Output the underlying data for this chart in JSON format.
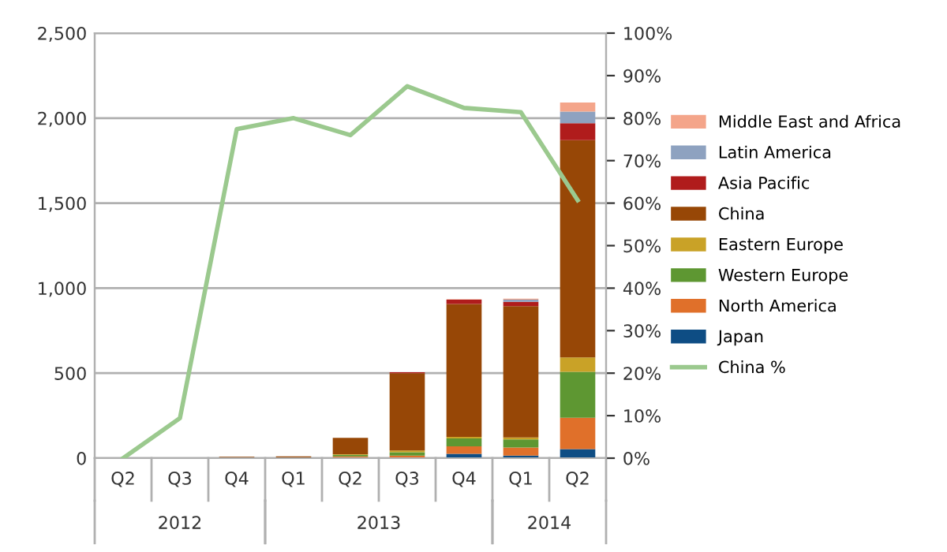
{
  "chart_data": {
    "type": "bar",
    "stacked": true,
    "categories": [
      "Q2",
      "Q3",
      "Q4",
      "Q1",
      "Q2",
      "Q3",
      "Q4",
      "Q1",
      "Q2"
    ],
    "series": [
      {
        "name": "Japan",
        "color": "#0e4d84",
        "values": [
          0,
          0,
          0,
          0,
          5,
          5,
          25,
          15,
          53
        ]
      },
      {
        "name": "North America",
        "color": "#e0702a",
        "values": [
          0,
          0,
          5,
          2,
          5,
          10,
          44,
          48,
          185
        ]
      },
      {
        "name": "Western Europe",
        "color": "#5e9732",
        "values": [
          0,
          0,
          0,
          0,
          10,
          20,
          47,
          47,
          270
        ]
      },
      {
        "name": "Eastern Europe",
        "color": "#c9a227",
        "values": [
          0,
          0,
          0,
          0,
          3,
          10,
          9,
          12,
          85
        ]
      },
      {
        "name": "China",
        "color": "#974706",
        "values": [
          0,
          0,
          3,
          8,
          97,
          455,
          782,
          772,
          1277
        ]
      },
      {
        "name": "Asia Pacific",
        "color": "#b01c1c",
        "values": [
          0,
          0,
          0,
          0,
          null,
          6,
          25,
          25,
          100
        ]
      },
      {
        "name": "Latin America",
        "color": "#8ea2c0",
        "values": [
          0,
          0,
          0,
          0,
          0,
          0,
          null,
          13,
          69
        ]
      },
      {
        "name": "Middle East and Africa",
        "color": "#f4a58a",
        "values": [
          0,
          0,
          0,
          0,
          0,
          0,
          3,
          6,
          53
        ]
      },
      {
        "name": "China %",
        "type": "line",
        "axis": "y2",
        "color": "#9bc98e",
        "values": [
          0,
          9.4,
          77.4,
          80,
          76,
          87.5,
          82.4,
          81.4,
          60.7
        ]
      }
    ],
    "annotations": [
      "2012",
      "2013",
      "2014"
    ],
    "ylim": [
      0,
      2500
    ],
    "yticks": [
      {
        "value": 0,
        "label": "0"
      },
      {
        "value": 500,
        "label": "500"
      },
      {
        "value": 1000,
        "label": "1,000"
      },
      {
        "value": 1500,
        "label": "1,500"
      },
      {
        "value": 2000,
        "label": "2,000"
      },
      {
        "value": 2500,
        "label": "2,500"
      }
    ],
    "y2lim": [
      0,
      100
    ],
    "y2ticks": [
      {
        "value": 0,
        "label": "0%"
      },
      {
        "value": 10,
        "label": "10%"
      },
      {
        "value": 20,
        "label": "20%"
      },
      {
        "value": 30,
        "label": "30%"
      },
      {
        "value": 40,
        "label": "40%"
      },
      {
        "value": 50,
        "label": "50%"
      },
      {
        "value": 60,
        "label": "60%"
      },
      {
        "value": 70,
        "label": "70%"
      },
      {
        "value": 80,
        "label": "80%"
      },
      {
        "value": 90,
        "label": "90%"
      },
      {
        "value": 100,
        "label": "100%"
      }
    ],
    "grid": "y",
    "legend": "right",
    "marker": "none",
    "line_style": "solid"
  }
}
